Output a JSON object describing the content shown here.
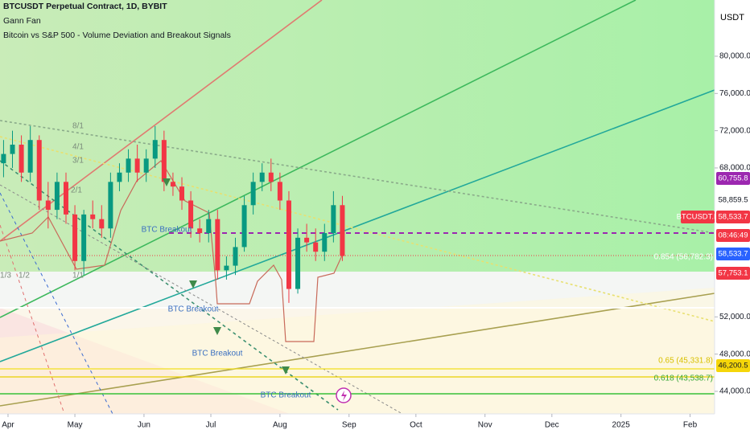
{
  "chart_data": {
    "type": "candlestick",
    "title": "BTCUSDT Perpetual Contract, 1D, BYBIT",
    "indicators": [
      "Gann Fan",
      "Bitcoin vs S&P 500 - Volume Deviation and Breakout Signals"
    ],
    "currency": "USDT",
    "x": [
      -2,
      2,
      6,
      10,
      14,
      18,
      22,
      26,
      30,
      34,
      38,
      42,
      46,
      50,
      54,
      58,
      62,
      66,
      70,
      74,
      78,
      82,
      86,
      90,
      94,
      98,
      102,
      106,
      110,
      114,
      118,
      122,
      126,
      130,
      134,
      138,
      142,
      146,
      150
    ],
    "open": [
      68500,
      69500,
      70500,
      67500,
      71000,
      64500,
      63500,
      66500,
      63000,
      58000,
      63000,
      62500,
      61500,
      66500,
      67500,
      69000,
      67500,
      69000,
      71000,
      66500,
      66000,
      64500,
      61500,
      61000,
      62500,
      57000,
      57500,
      59500,
      64000,
      66500,
      67500,
      66500,
      64500,
      55000,
      60500,
      60000,
      59000,
      61000,
      64000
    ],
    "high": [
      71000,
      72000,
      71500,
      72500,
      71500,
      66500,
      67500,
      67500,
      64000,
      63500,
      64500,
      64000,
      67500,
      68500,
      70000,
      70500,
      70000,
      72500,
      72000,
      67500,
      67000,
      65500,
      62500,
      63500,
      63500,
      58500,
      60500,
      65000,
      67500,
      68500,
      69000,
      67500,
      65500,
      61500,
      62000,
      61500,
      62000,
      65500,
      65000
    ],
    "low": [
      67000,
      68000,
      66500,
      66500,
      63500,
      61500,
      62500,
      62000,
      57000,
      56500,
      61500,
      60500,
      60500,
      65500,
      66500,
      66500,
      66500,
      68000,
      65500,
      65000,
      63500,
      60500,
      60000,
      60000,
      56000,
      56000,
      56500,
      59000,
      63000,
      65500,
      65500,
      63500,
      53500,
      54500,
      59000,
      58000,
      58000,
      60000,
      58000
    ],
    "close": [
      69500,
      70500,
      67500,
      71000,
      64500,
      63500,
      66500,
      63000,
      58000,
      63000,
      62500,
      61500,
      66500,
      67500,
      69000,
      67500,
      69000,
      71000,
      66500,
      66000,
      64500,
      61500,
      61000,
      62500,
      57000,
      57500,
      59500,
      64000,
      66500,
      67500,
      66500,
      64500,
      55000,
      60500,
      60000,
      59000,
      61000,
      64000,
      58533.7
    ],
    "up_color": "#089981",
    "down_color": "#f23645",
    "xlim": [
      -3.6,
      317
    ],
    "xticks": [
      {
        "value": 0,
        "label": "Apr"
      },
      {
        "value": 30,
        "label": "May"
      },
      {
        "value": 61,
        "label": "Jun"
      },
      {
        "value": 91,
        "label": "Jul"
      },
      {
        "value": 122,
        "label": "Aug"
      },
      {
        "value": 153,
        "label": "Sep"
      },
      {
        "value": 183,
        "label": "Oct"
      },
      {
        "value": 214,
        "label": "Nov"
      },
      {
        "value": 244,
        "label": "Dec"
      },
      {
        "value": 275,
        "label": "2025"
      },
      {
        "value": 306,
        "label": "Feb"
      }
    ],
    "ylim": [
      41580,
      86040
    ],
    "yticks": [
      {
        "value": 80000,
        "label": "80,000.0"
      },
      {
        "value": 76000,
        "label": "76,000.0"
      },
      {
        "value": 72000,
        "label": "72,000.0"
      },
      {
        "value": 68000,
        "label": "68,000.0"
      },
      {
        "value": 52000,
        "label": "52,000.0"
      },
      {
        "value": 48000,
        "label": "48,000.0"
      },
      {
        "value": 44000,
        "label": "44,000.0"
      }
    ],
    "price_tags": [
      {
        "label": "60,755.8",
        "color": "#9c27b0"
      },
      {
        "label": "58,859.5",
        "color": null
      },
      {
        "label": "BTCUSDT.P",
        "color": "#f23645"
      },
      {
        "label": "58,533.7",
        "color": "#f23645"
      },
      {
        "label": "08:46:49",
        "color": "#f23645"
      },
      {
        "label": "58,533.7",
        "color": "#2962ff"
      },
      {
        "label": "57,753.1",
        "color": "#f23645"
      },
      {
        "label": "46,200.5",
        "color": "#f5d60a"
      }
    ],
    "annotations": [
      "BTC Breakout",
      "BTC Breakout",
      "BTC Breakout",
      "BTC Breakout"
    ],
    "gann_labels": [
      "8/1",
      "4/1",
      "3/1",
      "2/1",
      "1/1",
      "1/3",
      "1/2"
    ],
    "fib_labels": [
      "0.854 (56,782.3)",
      "0.65 (45,331.8)",
      "0.618 (43,538.7)"
    ]
  }
}
